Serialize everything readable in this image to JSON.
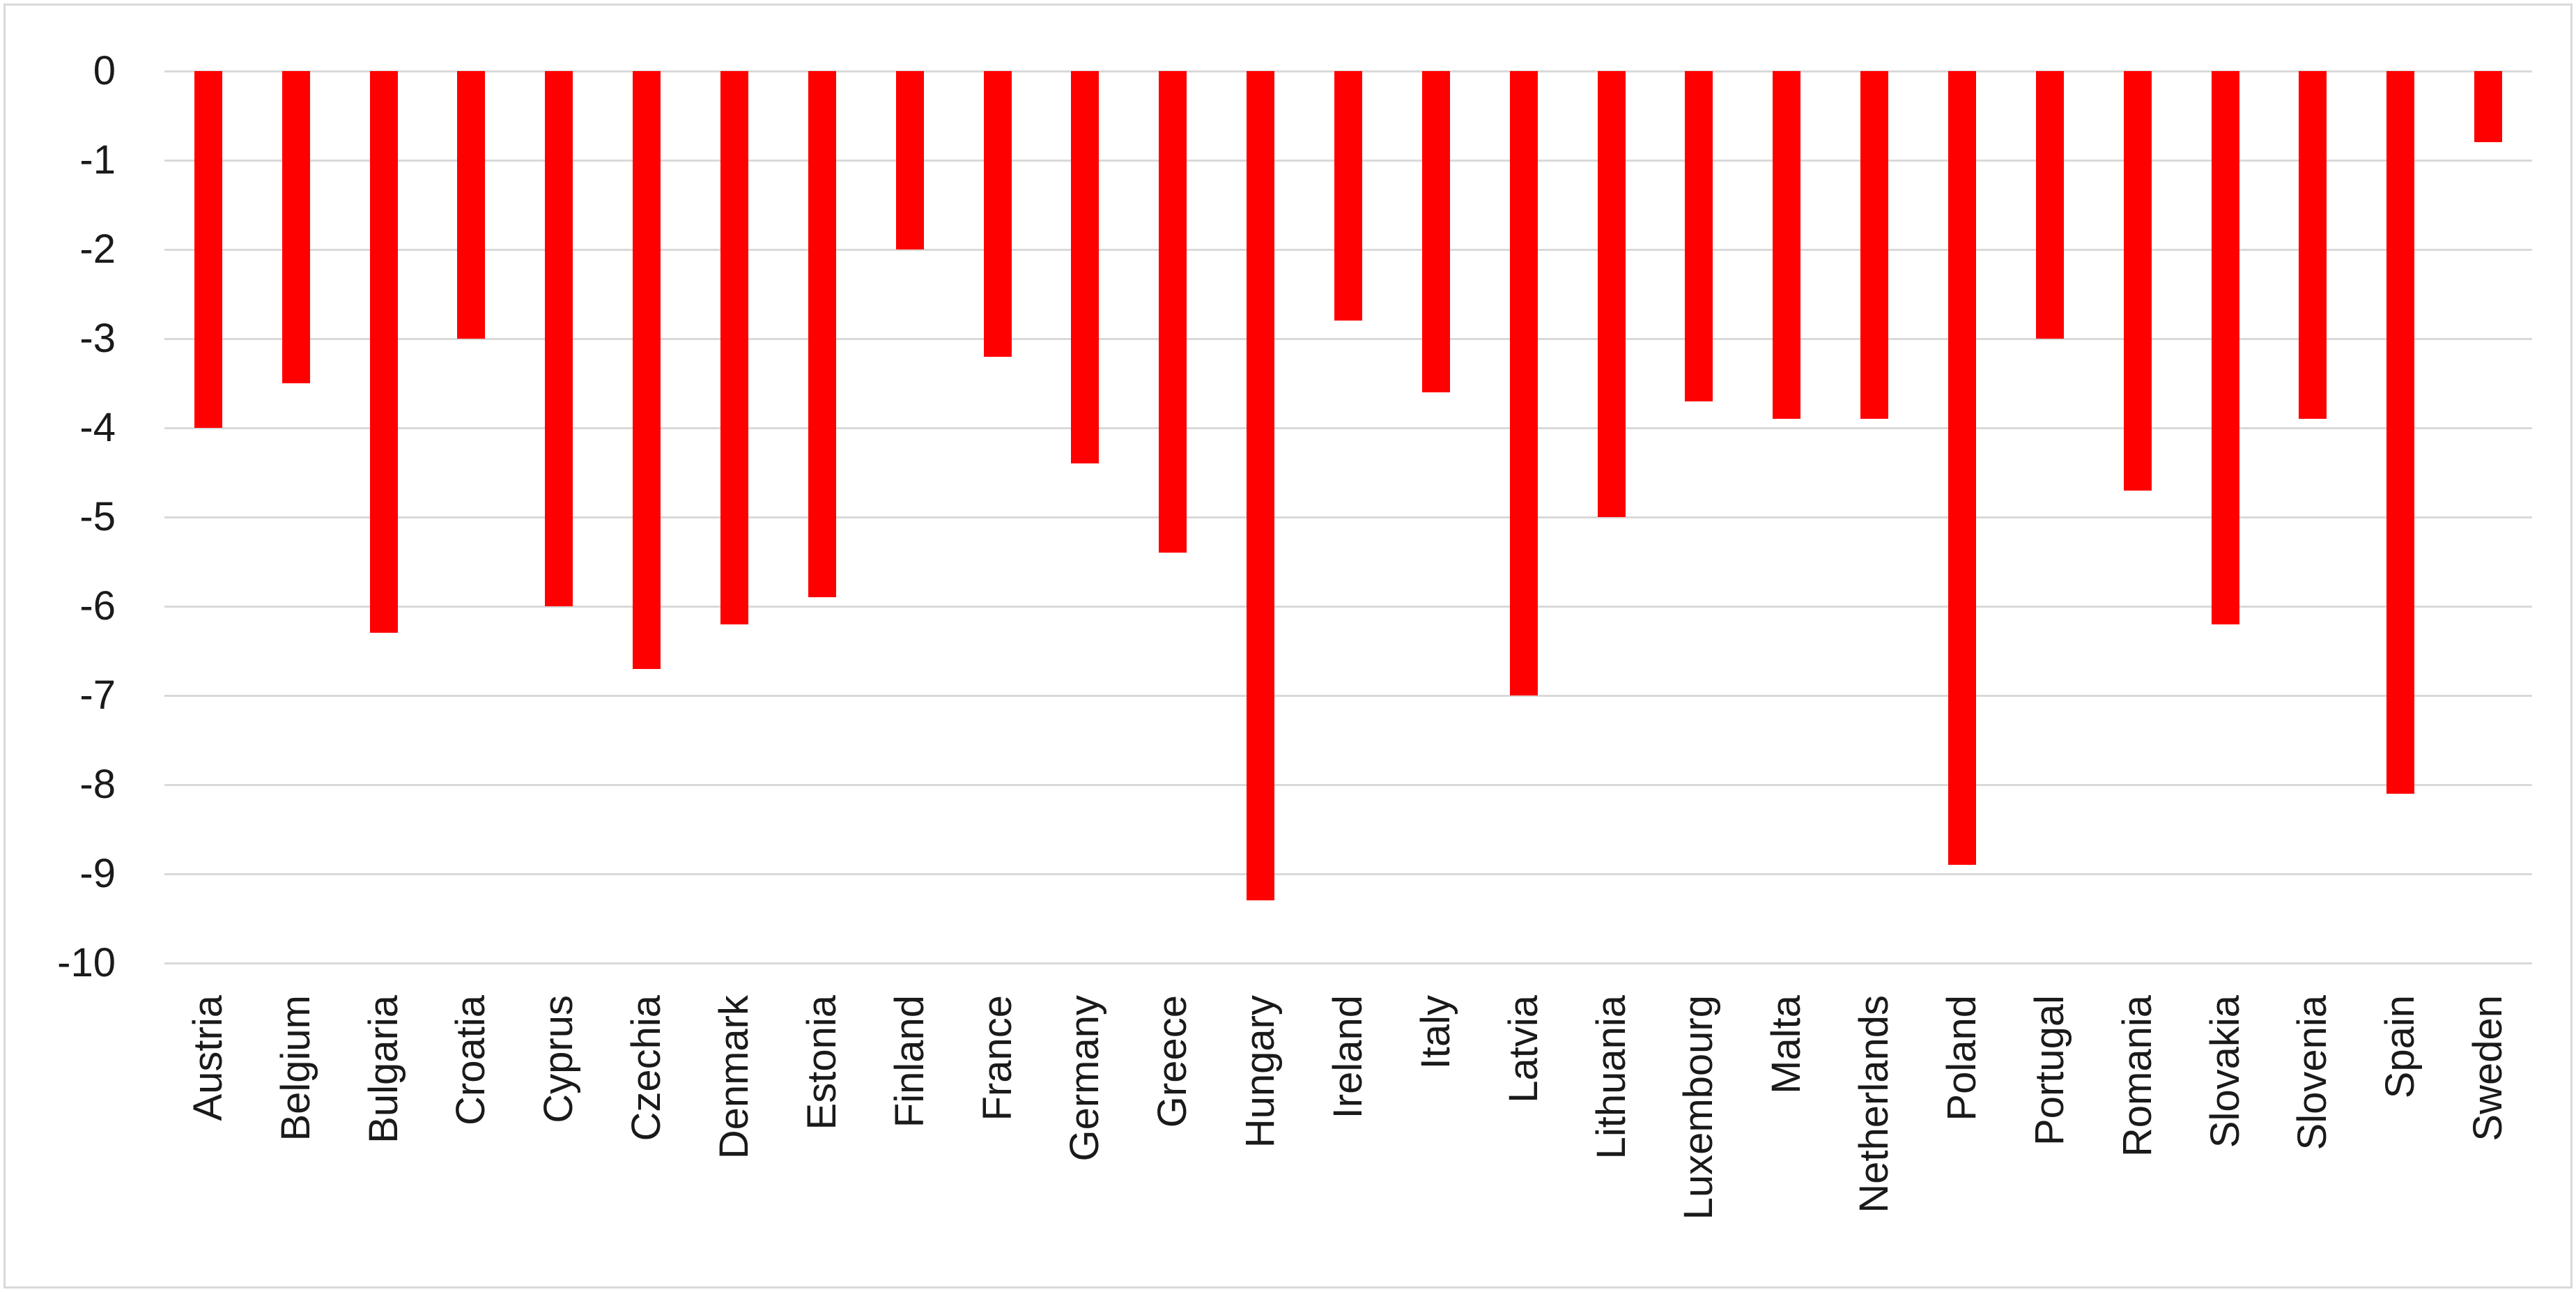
{
  "chart_data": {
    "type": "bar",
    "categories": [
      "Austria",
      "Belgium",
      "Bulgaria",
      "Croatia",
      "Cyprus",
      "Czechia",
      "Denmark",
      "Estonia",
      "Finland",
      "France",
      "Germany",
      "Greece",
      "Hungary",
      "Ireland",
      "Italy",
      "Latvia",
      "Lithuania",
      "Luxembourg",
      "Malta",
      "Netherlands",
      "Poland",
      "Portugal",
      "Romania",
      "Slovakia",
      "Slovenia",
      "Spain",
      "Sweden"
    ],
    "values": [
      -4.0,
      -3.5,
      -6.3,
      -3.0,
      -6.0,
      -6.7,
      -6.2,
      -5.9,
      -2.0,
      -3.2,
      -4.4,
      -5.4,
      -9.3,
      -2.8,
      -3.6,
      -7.0,
      -5.0,
      -3.7,
      -3.9,
      -3.9,
      -8.9,
      -3.0,
      -4.7,
      -6.2,
      -3.9,
      -8.1,
      -0.8
    ],
    "yticks": [
      "0",
      "-1",
      "-2",
      "-3",
      "-4",
      "-5",
      "-6",
      "-7",
      "-8",
      "-9",
      "-10"
    ],
    "ylim": [
      -10,
      0
    ],
    "grid": true,
    "legend": false,
    "bar_color": "#FF0000",
    "gridline_color": "#D9D9D9",
    "axis_text_color": "#1A1A1A",
    "background_color": "#FFFFFF",
    "border_color": "#D9D9D9"
  }
}
